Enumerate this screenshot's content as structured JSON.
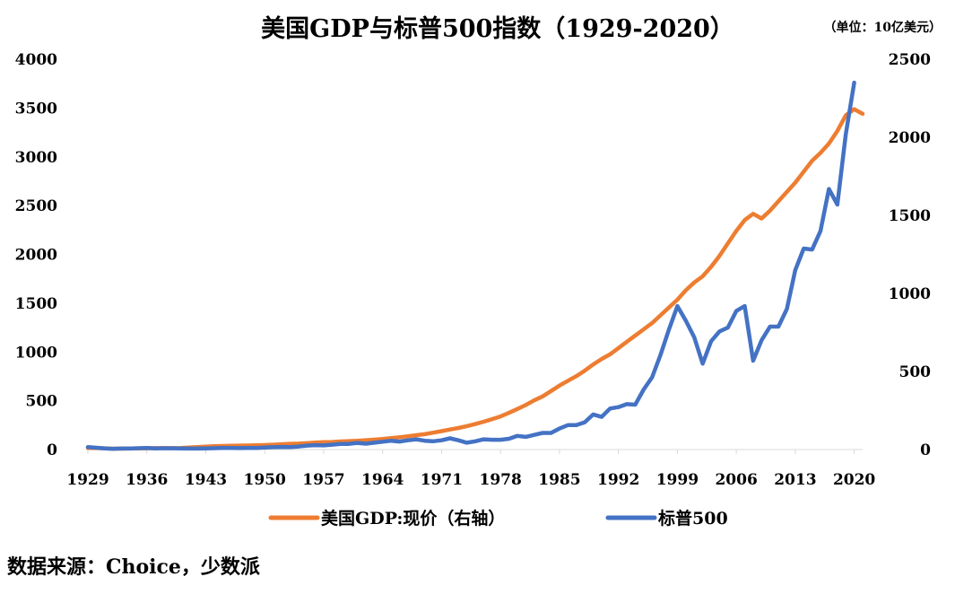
{
  "chart_data": {
    "type": "line",
    "title": "美国GDP与标普500指数（1929-2020）",
    "unit_note": "（单位：10亿美元）",
    "source_note": "数据来源：Choice，少数派",
    "x_ticks": [
      "1929",
      "1936",
      "1943",
      "1950",
      "1957",
      "1964",
      "1971",
      "1978",
      "1985",
      "1992",
      "1999",
      "2006",
      "2013",
      "2020"
    ],
    "y_left": {
      "ticks": [
        "0",
        "500",
        "1000",
        "1500",
        "2000",
        "2500",
        "3000",
        "3500",
        "4000"
      ],
      "range": [
        0,
        4000
      ]
    },
    "y_right": {
      "ticks": [
        "0",
        "500",
        "1000",
        "1500",
        "2000",
        "2500"
      ],
      "range": [
        0,
        2500
      ]
    },
    "x_range": [
      1929,
      2021
    ],
    "series": [
      {
        "name": "美国GDP:现价（右轴）",
        "axis": "right",
        "color": "#ED7D31",
        "x": [
          1929,
          1930,
          1931,
          1932,
          1933,
          1934,
          1935,
          1936,
          1937,
          1938,
          1939,
          1940,
          1941,
          1942,
          1943,
          1944,
          1945,
          1946,
          1947,
          1948,
          1949,
          1950,
          1951,
          1952,
          1953,
          1954,
          1955,
          1956,
          1957,
          1958,
          1959,
          1960,
          1961,
          1962,
          1963,
          1964,
          1965,
          1966,
          1967,
          1968,
          1969,
          1970,
          1971,
          1972,
          1973,
          1974,
          1975,
          1976,
          1977,
          1978,
          1979,
          1980,
          1981,
          1982,
          1983,
          1984,
          1985,
          1986,
          1987,
          1988,
          1989,
          1990,
          1991,
          1992,
          1993,
          1994,
          1995,
          1996,
          1997,
          1998,
          1999,
          2000,
          2001,
          2002,
          2003,
          2004,
          2005,
          2006,
          2007,
          2008,
          2009,
          2010,
          2011,
          2012,
          2013,
          2014,
          2015,
          2016,
          2017,
          2018,
          2019,
          2020,
          2021
        ],
        "values": [
          10,
          9,
          8,
          6,
          6,
          7,
          7,
          8,
          9,
          9,
          9,
          10,
          13,
          16,
          19,
          22,
          23,
          24,
          25,
          26,
          27,
          29,
          31,
          34,
          37,
          38,
          41,
          44,
          47,
          48,
          52,
          54,
          56,
          60,
          63,
          68,
          73,
          79,
          85,
          92,
          98,
          108,
          118,
          128,
          138,
          150,
          163,
          178,
          195,
          212,
          235,
          260,
          285,
          315,
          340,
          375,
          410,
          440,
          470,
          505,
          545,
          580,
          610,
          650,
          690,
          730,
          770,
          810,
          860,
          910,
          960,
          1020,
          1070,
          1110,
          1170,
          1240,
          1320,
          1400,
          1470,
          1510,
          1480,
          1530,
          1590,
          1650,
          1710,
          1780,
          1850,
          1900,
          1960,
          2040,
          2140,
          2180,
          2150
        ]
      },
      {
        "name": "标普500",
        "axis": "left",
        "color": "#4472C4",
        "x": [
          1929,
          1930,
          1931,
          1932,
          1933,
          1934,
          1935,
          1936,
          1937,
          1938,
          1939,
          1940,
          1941,
          1942,
          1943,
          1944,
          1945,
          1946,
          1947,
          1948,
          1949,
          1950,
          1951,
          1952,
          1953,
          1954,
          1955,
          1956,
          1957,
          1958,
          1959,
          1960,
          1961,
          1962,
          1963,
          1964,
          1965,
          1966,
          1967,
          1968,
          1969,
          1970,
          1971,
          1972,
          1973,
          1974,
          1975,
          1976,
          1977,
          1978,
          1979,
          1980,
          1981,
          1982,
          1983,
          1984,
          1985,
          1986,
          1987,
          1988,
          1989,
          1990,
          1991,
          1992,
          1993,
          1994,
          1995,
          1996,
          1997,
          1998,
          1999,
          2000,
          2001,
          2002,
          2003,
          2004,
          2005,
          2006,
          2007,
          2008,
          2009,
          2010,
          2011,
          2012,
          2013,
          2014,
          2015,
          2016,
          2017,
          2018,
          2019,
          2020,
          2021
        ],
        "values": [
          25,
          18,
          12,
          7,
          10,
          10,
          14,
          17,
          12,
          14,
          13,
          12,
          10,
          10,
          12,
          14,
          16,
          17,
          15,
          16,
          17,
          20,
          24,
          27,
          25,
          30,
          40,
          45,
          42,
          50,
          58,
          58,
          68,
          60,
          70,
          80,
          90,
          82,
          95,
          105,
          90,
          85,
          95,
          115,
          95,
          70,
          85,
          105,
          100,
          100,
          110,
          140,
          130,
          150,
          170,
          170,
          215,
          250,
          250,
          280,
          360,
          335,
          420,
          435,
          465,
          460,
          615,
          740,
          970,
          1230,
          1470,
          1320,
          1150,
          880,
          1110,
          1210,
          1250,
          1420,
          1470,
          910,
          1120,
          1260,
          1260,
          1440,
          1840,
          2060,
          2050,
          2240,
          2670,
          2510,
          3230,
          3760,
          null
        ]
      }
    ]
  }
}
